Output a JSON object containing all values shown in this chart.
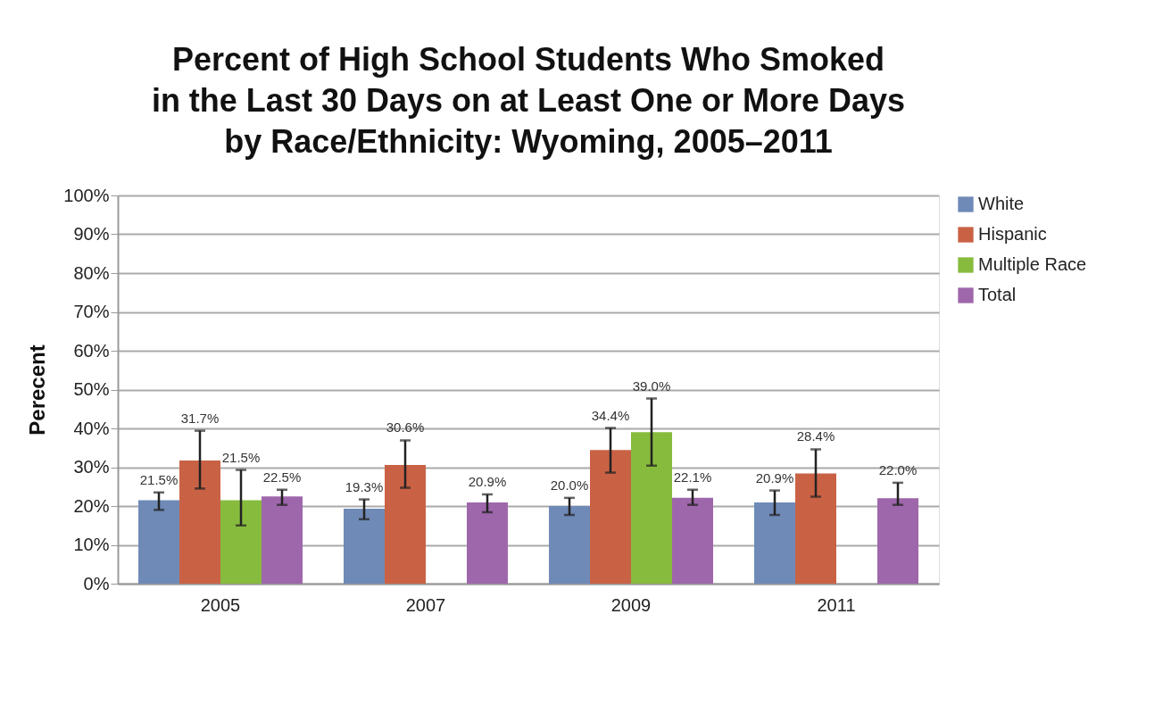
{
  "chart_data": {
    "type": "bar",
    "title": "Percent of High School Students Who Smoked\nin the Last 30 Days on at Least One or More Days\nby Race/Ethnicity: Wyoming, 2005–2011",
    "ylabel": "Perecent",
    "categories": [
      "2005",
      "2007",
      "2009",
      "2011"
    ],
    "series": [
      {
        "name": "White",
        "color": "#6f8ab7",
        "values": [
          21.5,
          19.3,
          20.0,
          20.9
        ],
        "errors": [
          [
            19.0,
            23.5
          ],
          [
            16.6,
            21.7
          ],
          [
            17.7,
            22.1
          ],
          [
            17.7,
            24.0
          ]
        ],
        "value_labels": [
          "21.5%",
          "19.3%",
          "20.0%",
          "20.9%"
        ]
      },
      {
        "name": "Hispanic",
        "color": "#c96245",
        "values": [
          31.7,
          30.6,
          34.4,
          28.4
        ],
        "errors": [
          [
            24.5,
            39.4
          ],
          [
            24.7,
            36.9
          ],
          [
            28.6,
            40.1
          ],
          [
            22.4,
            34.6
          ]
        ],
        "value_labels": [
          "31.7%",
          "30.6%",
          "34.4%",
          "28.4%"
        ]
      },
      {
        "name": "Multiple Race",
        "color": "#87bb3e",
        "values": [
          21.5,
          null,
          39.0,
          null
        ],
        "errors": [
          [
            15.0,
            29.3
          ],
          null,
          [
            30.4,
            47.7
          ],
          null
        ],
        "value_labels": [
          "21.5%",
          null,
          "39.0%",
          null
        ]
      },
      {
        "name": "Total",
        "color": "#9e67ab",
        "values": [
          22.5,
          20.9,
          22.1,
          22.0
        ],
        "errors": [
          [
            20.3,
            24.2
          ],
          [
            18.4,
            23.0
          ],
          [
            20.3,
            24.2
          ],
          [
            20.3,
            26.0
          ]
        ],
        "value_labels": [
          "22.5%",
          "20.9%",
          "22.1%",
          "22.0%"
        ]
      }
    ],
    "ylim": [
      0,
      100
    ],
    "yticks": [
      {
        "value": 0,
        "label": "0%"
      },
      {
        "value": 10,
        "label": "10%"
      },
      {
        "value": 20,
        "label": "20%"
      },
      {
        "value": 30,
        "label": "30%"
      },
      {
        "value": 40,
        "label": "40%"
      },
      {
        "value": 50,
        "label": "50%"
      },
      {
        "value": 60,
        "label": "60%"
      },
      {
        "value": 70,
        "label": "70%"
      },
      {
        "value": 80,
        "label": "80%"
      },
      {
        "value": 90,
        "label": "90%"
      },
      {
        "value": 100,
        "label": "100%"
      }
    ],
    "grid": "y",
    "legend": "right"
  }
}
